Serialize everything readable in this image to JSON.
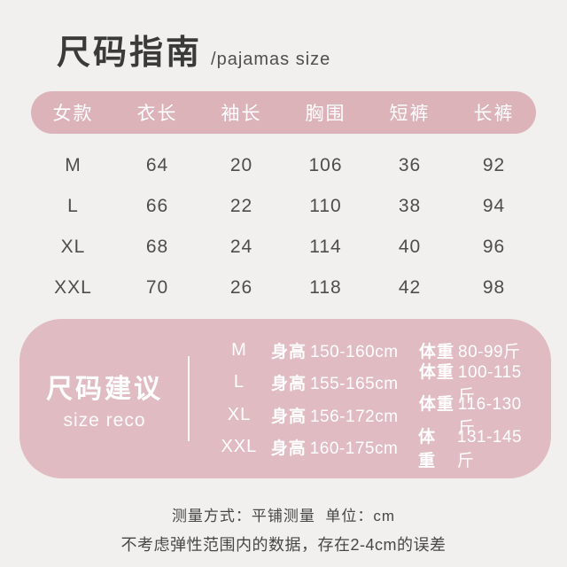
{
  "page": {
    "title_cn": "尺码指南",
    "title_en": "/pajamas size"
  },
  "size_table": {
    "headers": [
      "女款",
      "衣长",
      "袖长",
      "胸围",
      "短裤",
      "长裤"
    ],
    "rows": [
      [
        "M",
        "64",
        "20",
        "106",
        "36",
        "92"
      ],
      [
        "L",
        "66",
        "22",
        "110",
        "38",
        "94"
      ],
      [
        "XL",
        "68",
        "24",
        "114",
        "40",
        "96"
      ],
      [
        "XXL",
        "70",
        "26",
        "118",
        "42",
        "98"
      ]
    ]
  },
  "size_reco": {
    "label_cn": "尺码建议",
    "label_en": "size reco",
    "rows": [
      {
        "size": "M",
        "height_label": "身高",
        "height": "150-160cm",
        "weight_label": "体重",
        "weight": "80-99斤"
      },
      {
        "size": "L",
        "height_label": "身高",
        "height": "155-165cm",
        "weight_label": "体重",
        "weight": "100-115 斤"
      },
      {
        "size": "XL",
        "height_label": "身高",
        "height": "156-172cm",
        "weight_label": "体重",
        "weight": "116-130 斤"
      },
      {
        "size": "XXL",
        "height_label": "身高",
        "height": "160-175cm",
        "weight_label": "体重",
        "weight": "131-145 斤"
      }
    ]
  },
  "footer": {
    "line1": "测量方式：平铺测量  单位：cm",
    "line2": "不考虑弹性范围内的数据，存在2-4cm的误差"
  },
  "colors": {
    "background": "#f1f0ee",
    "header_pink": "#dcb3b9",
    "box_pink": "#e0bbc1",
    "text_dark": "#3a3a3a",
    "text_gray": "#4d4d4d",
    "text_white": "#ffffff"
  }
}
